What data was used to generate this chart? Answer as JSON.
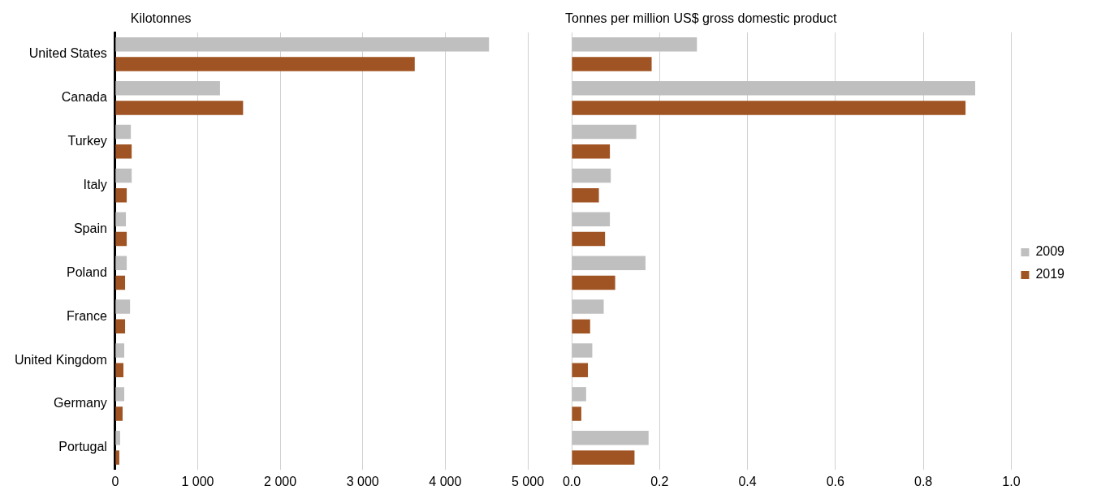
{
  "chart_data": [
    {
      "type": "bar",
      "orientation": "horizontal",
      "title": "Kilotonnes",
      "categories": [
        "United States",
        "Canada",
        "Turkey",
        "Italy",
        "Spain",
        "Poland",
        "France",
        "United Kingdom",
        "Germany",
        "Portugal"
      ],
      "series": [
        {
          "color": "#bfbfbf",
          "values": [
            4530,
            1270,
            190,
            200,
            130,
            140,
            180,
            110,
            110,
            60
          ]
        },
        {
          "color": "#a05423",
          "values": [
            3630,
            1550,
            200,
            140,
            140,
            120,
            120,
            100,
            90,
            50
          ]
        }
      ],
      "xlim": [
        0,
        5000
      ],
      "xticks": [
        0,
        {
          "value": 1000,
          "label": "1 000"
        },
        {
          "value": 2000,
          "label": "2 000"
        },
        {
          "value": 3000,
          "label": "3 000"
        },
        {
          "value": 4000,
          "label": "4 000"
        },
        {
          "value": 5000,
          "label": "5 000"
        }
      ],
      "grid": "x",
      "legend": false
    },
    {
      "type": "bar",
      "orientation": "horizontal",
      "title": "Tonnes per million US$ gross domestic product",
      "series": [
        {
          "name": "2009",
          "color": "#bfbfbf",
          "values": [
            0.285,
            0.918,
            0.147,
            0.089,
            0.087,
            0.168,
            0.073,
            0.047,
            0.033,
            0.175
          ]
        },
        {
          "name": "2019",
          "color": "#a05423",
          "values": [
            0.182,
            0.896,
            0.087,
            0.062,
            0.076,
            0.099,
            0.042,
            0.037,
            0.022,
            0.143
          ]
        }
      ],
      "xlim": [
        0,
        1.0
      ],
      "xticks": [
        {
          "value": 0,
          "label": "0.0"
        },
        0.2,
        0.4,
        0.6,
        0.8,
        {
          "value": 1.0,
          "label": "1.0"
        }
      ],
      "grid": "x",
      "legend": "right",
      "tick_labels": "x"
    }
  ]
}
